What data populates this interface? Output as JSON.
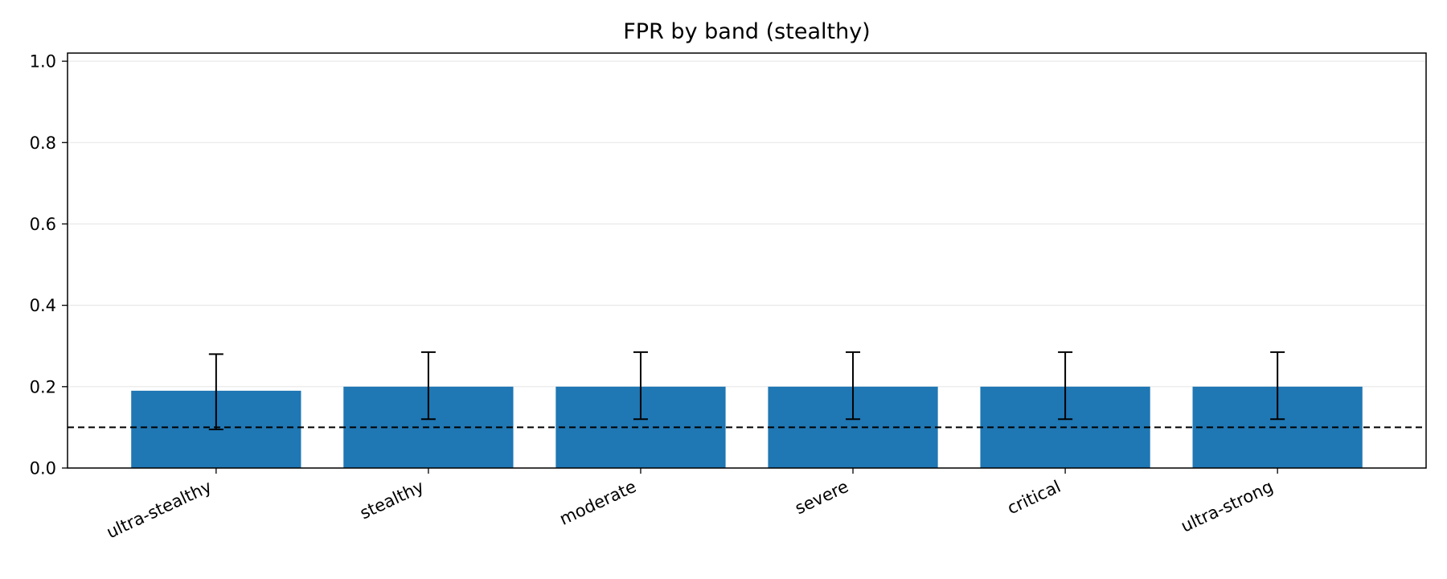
{
  "chart_data": {
    "type": "bar",
    "title": "FPR by band (stealthy)",
    "xlabel": "",
    "ylabel": "",
    "categories": [
      "ultra-stealthy",
      "stealthy",
      "moderate",
      "severe",
      "critical",
      "ultra-strong"
    ],
    "values": [
      0.19,
      0.2,
      0.2,
      0.2,
      0.2,
      0.2
    ],
    "error_low": [
      0.095,
      0.12,
      0.12,
      0.12,
      0.12,
      0.12
    ],
    "error_high": [
      0.28,
      0.285,
      0.285,
      0.285,
      0.285,
      0.285
    ],
    "reference_line": 0.1,
    "ylim": [
      0,
      1.02
    ],
    "yticks": [
      "0.0",
      "0.2",
      "0.4",
      "0.6",
      "0.8",
      "1.0"
    ],
    "ytick_values": [
      0,
      0.2,
      0.4,
      0.6,
      0.8,
      1.0
    ],
    "grid": "horizontal",
    "colors": {
      "bar": "#1f77b4",
      "error": "#000000",
      "reference": "#000000",
      "grid": "#e8e8e8"
    }
  }
}
